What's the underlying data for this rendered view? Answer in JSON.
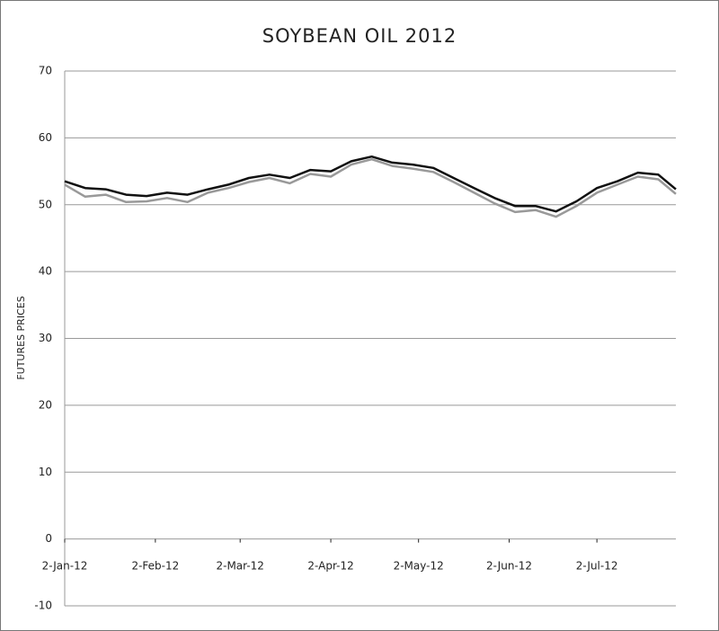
{
  "chart_data": {
    "type": "line",
    "title": "SOYBEAN OIL 2012",
    "y_label": "FUTURES PRICES",
    "x": [
      "2012-01-02",
      "2012-01-09",
      "2012-01-16",
      "2012-01-23",
      "2012-01-30",
      "2012-02-06",
      "2012-02-13",
      "2012-02-20",
      "2012-02-27",
      "2012-03-05",
      "2012-03-12",
      "2012-03-19",
      "2012-03-26",
      "2012-04-02",
      "2012-04-09",
      "2012-04-16",
      "2012-04-23",
      "2012-04-30",
      "2012-05-07",
      "2012-05-14",
      "2012-05-21",
      "2012-05-28",
      "2012-06-04",
      "2012-06-11",
      "2012-06-18",
      "2012-06-25",
      "2012-07-02",
      "2012-07-09",
      "2012-07-16",
      "2012-07-23",
      "2012-07-29"
    ],
    "series": [
      {
        "color": "#111111",
        "values": [
          53.5,
          52.5,
          52.3,
          51.5,
          51.3,
          51.8,
          51.5,
          52.3,
          53.0,
          54.0,
          54.5,
          54.0,
          55.2,
          55.0,
          56.5,
          57.2,
          56.3,
          56.0,
          55.5,
          54.0,
          52.5,
          51.0,
          49.8,
          49.8,
          49.0,
          50.5,
          52.5,
          53.5,
          54.8,
          54.5,
          52.3
        ]
      },
      {
        "color": "#999999",
        "values": [
          53.0,
          51.2,
          51.5,
          50.4,
          50.5,
          51.0,
          50.4,
          51.8,
          52.5,
          53.4,
          54.0,
          53.2,
          54.6,
          54.2,
          56.0,
          56.8,
          55.8,
          55.4,
          54.9,
          53.4,
          51.8,
          50.2,
          48.9,
          49.2,
          48.2,
          49.8,
          51.8,
          53.0,
          54.2,
          53.8,
          51.6
        ]
      }
    ],
    "xlim": [
      "2012-01-02",
      "2012-07-29"
    ],
    "xticks": [
      {
        "value": "2012-01-02",
        "label": "2-Jan-12"
      },
      {
        "value": "2012-02-02",
        "label": "2-Feb-12"
      },
      {
        "value": "2012-03-02",
        "label": "2-Mar-12"
      },
      {
        "value": "2012-04-02",
        "label": "2-Apr-12"
      },
      {
        "value": "2012-05-02",
        "label": "2-May-12"
      },
      {
        "value": "2012-06-02",
        "label": "2-Jun-12"
      },
      {
        "value": "2012-07-02",
        "label": "2-Jul-12"
      }
    ],
    "ylim": [
      -10,
      70
    ],
    "yticks": [
      -10,
      0,
      10,
      20,
      30,
      40,
      50,
      60,
      70
    ],
    "grid": true
  }
}
